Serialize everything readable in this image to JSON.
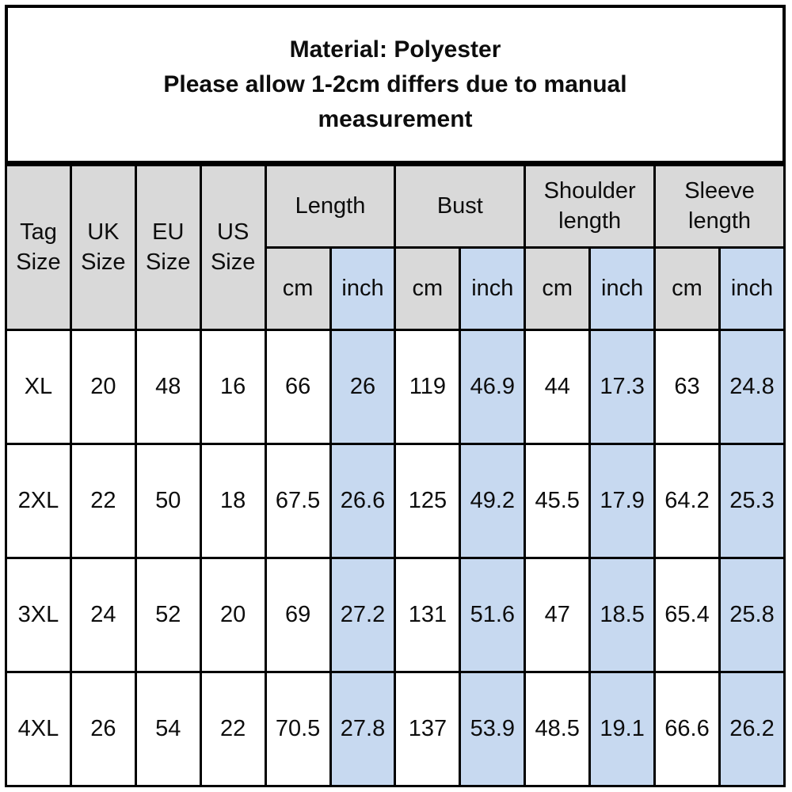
{
  "notice": {
    "material": "Material: Polyester",
    "disclaimer": "Please allow 1-2cm differs due to manual measurement"
  },
  "size_chart": {
    "size_columns": [
      "Tag Size",
      "UK Size",
      "EU Size",
      "US Size"
    ],
    "measure_groups": [
      "Length",
      "Bust",
      "Shoulder length",
      "Sleeve length"
    ],
    "units": {
      "cm": "cm",
      "inch": "inch"
    },
    "rows": [
      [
        "XL",
        "20",
        "48",
        "16",
        "66",
        "26",
        "119",
        "46.9",
        "44",
        "17.3",
        "63",
        "24.8"
      ],
      [
        "2XL",
        "22",
        "50",
        "18",
        "67.5",
        "26.6",
        "125",
        "49.2",
        "45.5",
        "17.9",
        "64.2",
        "25.3"
      ],
      [
        "3XL",
        "24",
        "52",
        "20",
        "69",
        "27.2",
        "131",
        "51.6",
        "47",
        "18.5",
        "65.4",
        "25.8"
      ],
      [
        "4XL",
        "26",
        "54",
        "22",
        "70.5",
        "27.8",
        "137",
        "53.9",
        "48.5",
        "19.1",
        "66.6",
        "26.2"
      ]
    ]
  },
  "colors": {
    "header_bg": "#d9d9d9",
    "inch_highlight": "#c7d9f0",
    "border": "#000000",
    "background": "#ffffff"
  }
}
